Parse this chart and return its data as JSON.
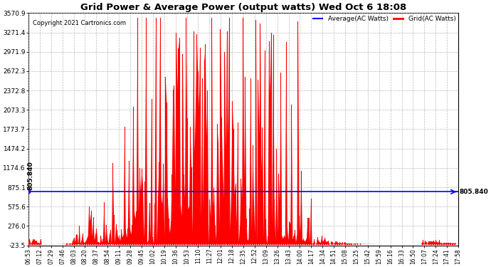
{
  "title": "Grid Power & Average Power (output watts) Wed Oct 6 18:08",
  "copyright": "Copyright 2021 Cartronics.com",
  "legend_avg": "Average(AC Watts)",
  "legend_grid": "Grid(AC Watts)",
  "avg_value": 805.84,
  "avg_label": "805.840",
  "ylim": [
    -23.5,
    3570.9
  ],
  "yticks": [
    -23.5,
    276.0,
    575.6,
    875.1,
    1174.6,
    1474.2,
    1773.7,
    2073.3,
    2372.8,
    2672.3,
    2971.9,
    3271.4,
    3570.9
  ],
  "xtick_labels": [
    "06:53",
    "07:12",
    "07:29",
    "07:46",
    "08:03",
    "08:20",
    "08:37",
    "08:54",
    "09:11",
    "09:28",
    "09:45",
    "10:02",
    "10:19",
    "10:36",
    "10:53",
    "11:10",
    "11:27",
    "12:01",
    "12:18",
    "12:35",
    "12:52",
    "13:09",
    "13:26",
    "13:43",
    "14:00",
    "14:17",
    "14:34",
    "14:51",
    "15:08",
    "15:25",
    "15:42",
    "15:59",
    "16:16",
    "16:33",
    "16:50",
    "17:07",
    "17:24",
    "17:41",
    "17:58"
  ],
  "background_color": "#ffffff",
  "grid_color": "#aaaaaa",
  "area_color": "#ff0000",
  "avg_line_color": "#0000ff",
  "title_color": "#000000",
  "copyright_color": "#000000",
  "avg_legend_color": "#0000ff",
  "grid_legend_color": "#ff0000"
}
